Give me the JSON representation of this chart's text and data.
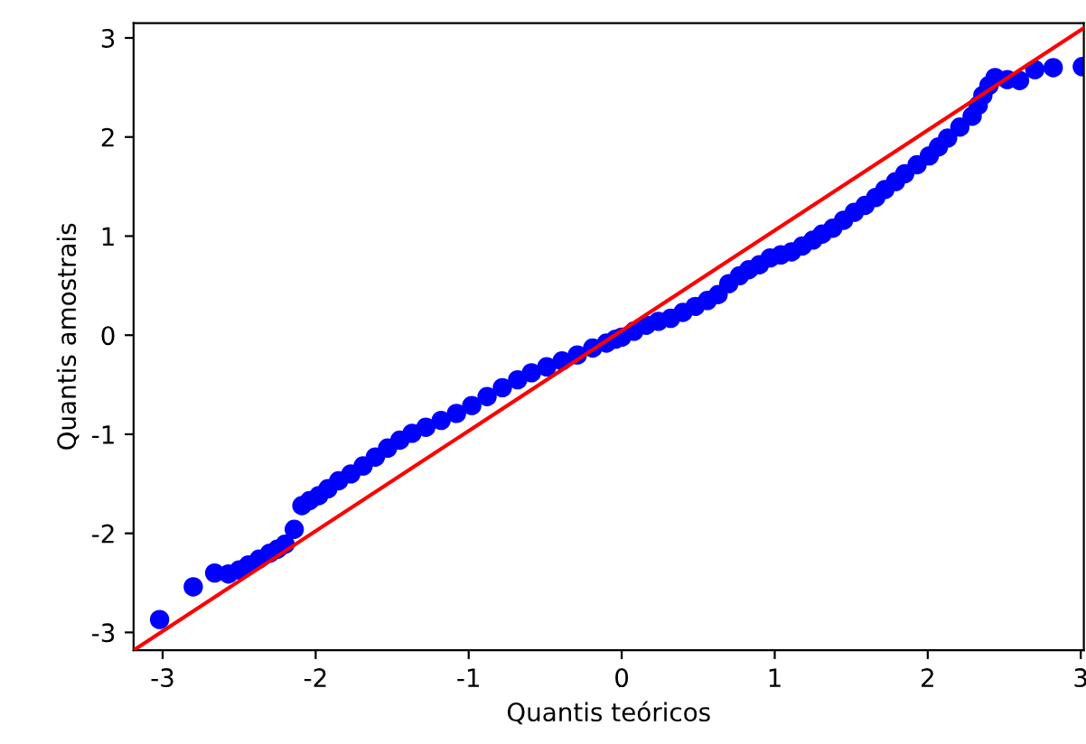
{
  "chart_data": {
    "type": "scatter",
    "xlabel": "Quantis teóricos",
    "ylabel": "Quantis amostrais",
    "xlim": [
      -3.19,
      3.02
    ],
    "ylim": [
      -3.18,
      3.15
    ],
    "xticks": [
      -3,
      -2,
      -1,
      0,
      1,
      2,
      3
    ],
    "yticks": [
      -3,
      -2,
      -1,
      0,
      1,
      2,
      3
    ],
    "grid": false,
    "legend": false,
    "marker": "circle",
    "series": [
      {
        "color": "#0000ff",
        "x": [
          -3.02,
          -2.8,
          -2.66,
          -2.57,
          -2.5,
          -2.44,
          -2.37,
          -2.3,
          -2.25,
          -2.2,
          -2.14,
          -2.09,
          -2.04,
          -1.98,
          -1.92,
          -1.85,
          -1.77,
          -1.69,
          -1.61,
          -1.53,
          -1.45,
          -1.37,
          -1.28,
          -1.18,
          -1.08,
          -0.98,
          -0.88,
          -0.78,
          -0.68,
          -0.59,
          -0.49,
          -0.39,
          -0.29,
          -0.19,
          -0.1,
          -0.04,
          0.0,
          0.08,
          0.16,
          0.24,
          0.32,
          0.4,
          0.48,
          0.56,
          0.63,
          0.7,
          0.77,
          0.83,
          0.9,
          0.97,
          1.04,
          1.11,
          1.18,
          1.25,
          1.31,
          1.38,
          1.45,
          1.52,
          1.59,
          1.66,
          1.72,
          1.79,
          1.85,
          1.93,
          2.01,
          2.07,
          2.13,
          2.21,
          2.29,
          2.33,
          2.36,
          2.4,
          2.44,
          2.52,
          2.6,
          2.7,
          2.82,
          3.01
        ],
        "values": [
          -2.87,
          -2.54,
          -2.4,
          -2.41,
          -2.37,
          -2.32,
          -2.26,
          -2.2,
          -2.16,
          -2.11,
          -1.96,
          -1.72,
          -1.67,
          -1.62,
          -1.55,
          -1.47,
          -1.4,
          -1.32,
          -1.23,
          -1.14,
          -1.06,
          -0.99,
          -0.93,
          -0.86,
          -0.79,
          -0.71,
          -0.62,
          -0.53,
          -0.45,
          -0.38,
          -0.32,
          -0.26,
          -0.2,
          -0.13,
          -0.08,
          -0.04,
          -0.02,
          0.04,
          0.1,
          0.14,
          0.17,
          0.23,
          0.29,
          0.35,
          0.41,
          0.52,
          0.6,
          0.66,
          0.71,
          0.78,
          0.81,
          0.84,
          0.9,
          0.96,
          1.02,
          1.08,
          1.16,
          1.24,
          1.31,
          1.39,
          1.47,
          1.55,
          1.63,
          1.72,
          1.81,
          1.9,
          1.99,
          2.1,
          2.21,
          2.32,
          2.42,
          2.52,
          2.6,
          2.58,
          2.57,
          2.68,
          2.7,
          2.71
        ]
      },
      {
        "type": "line",
        "color": "#ff0000",
        "marker": "none",
        "x": [
          -3.19,
          3.02
        ],
        "values": [
          -3.18,
          3.1
        ]
      }
    ]
  }
}
